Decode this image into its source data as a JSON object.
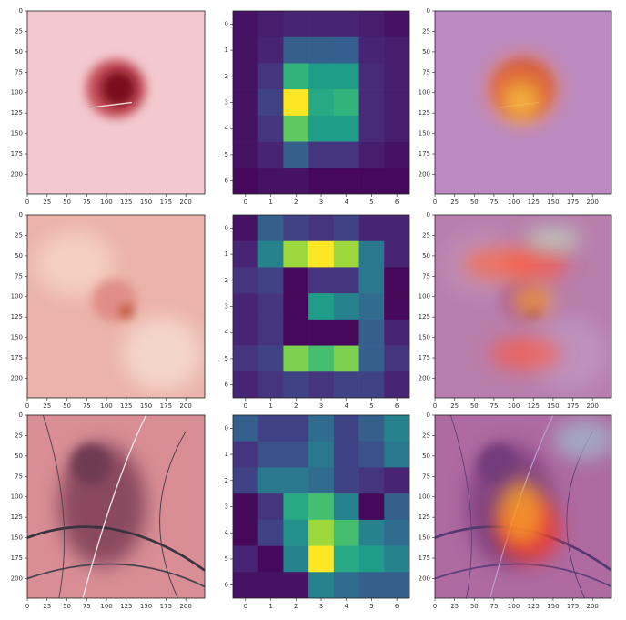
{
  "chart_data": [
    {
      "type": "image",
      "xlim": [
        0,
        224
      ],
      "ylim": [
        224,
        0
      ],
      "xticks": [
        0,
        25,
        50,
        75,
        100,
        125,
        150,
        175,
        200
      ],
      "yticks": [
        0,
        25,
        50,
        75,
        100,
        125,
        150,
        175,
        200
      ]
    },
    {
      "type": "heatmap",
      "colormap": "viridis",
      "xlim": [
        -0.5,
        6.5
      ],
      "ylim": [
        6.5,
        -0.5
      ],
      "xticks": [
        0,
        1,
        2,
        3,
        4,
        5,
        6
      ],
      "yticks": [
        0,
        1,
        2,
        3,
        4,
        5,
        6
      ],
      "values": [
        [
          0.05,
          0.08,
          0.1,
          0.1,
          0.1,
          0.08,
          0.05
        ],
        [
          0.05,
          0.1,
          0.3,
          0.3,
          0.3,
          0.1,
          0.08
        ],
        [
          0.05,
          0.15,
          0.65,
          0.55,
          0.55,
          0.12,
          0.08
        ],
        [
          0.05,
          0.2,
          1.0,
          0.6,
          0.65,
          0.12,
          0.08
        ],
        [
          0.05,
          0.15,
          0.75,
          0.55,
          0.55,
          0.12,
          0.08
        ],
        [
          0.05,
          0.1,
          0.3,
          0.15,
          0.15,
          0.08,
          0.05
        ],
        [
          0.02,
          0.05,
          0.05,
          0.02,
          0.02,
          0.02,
          0.02
        ]
      ]
    },
    {
      "type": "image",
      "xlim": [
        0,
        224
      ],
      "ylim": [
        224,
        0
      ],
      "xticks": [
        0,
        25,
        50,
        75,
        100,
        125,
        150,
        175,
        200
      ],
      "yticks": [
        0,
        25,
        50,
        75,
        100,
        125,
        150,
        175,
        200
      ]
    },
    {
      "type": "image",
      "xlim": [
        0,
        224
      ],
      "ylim": [
        224,
        0
      ],
      "xticks": [
        0,
        25,
        50,
        75,
        100,
        125,
        150,
        175,
        200
      ],
      "yticks": [
        0,
        25,
        50,
        75,
        100,
        125,
        150,
        175,
        200
      ]
    },
    {
      "type": "heatmap",
      "colormap": "viridis",
      "xlim": [
        -0.5,
        6.5
      ],
      "ylim": [
        6.5,
        -0.5
      ],
      "xticks": [
        0,
        1,
        2,
        3,
        4,
        5,
        6
      ],
      "yticks": [
        0,
        1,
        2,
        3,
        4,
        5,
        6
      ],
      "values": [
        [
          0.05,
          0.3,
          0.2,
          0.15,
          0.2,
          0.1,
          0.1
        ],
        [
          0.1,
          0.45,
          0.85,
          1.0,
          0.85,
          0.4,
          0.1
        ],
        [
          0.15,
          0.2,
          0.02,
          0.15,
          0.15,
          0.4,
          0.02
        ],
        [
          0.1,
          0.15,
          0.02,
          0.55,
          0.45,
          0.35,
          0.02
        ],
        [
          0.1,
          0.15,
          0.02,
          0.02,
          0.02,
          0.3,
          0.1
        ],
        [
          0.15,
          0.2,
          0.8,
          0.7,
          0.8,
          0.3,
          0.15
        ],
        [
          0.1,
          0.15,
          0.2,
          0.15,
          0.2,
          0.2,
          0.1
        ]
      ]
    },
    {
      "type": "image",
      "xlim": [
        0,
        224
      ],
      "ylim": [
        224,
        0
      ],
      "xticks": [
        0,
        25,
        50,
        75,
        100,
        125,
        150,
        175,
        200
      ],
      "yticks": [
        0,
        25,
        50,
        75,
        100,
        125,
        150,
        175,
        200
      ]
    },
    {
      "type": "image",
      "xlim": [
        0,
        224
      ],
      "ylim": [
        224,
        0
      ],
      "xticks": [
        0,
        25,
        50,
        75,
        100,
        125,
        150,
        175,
        200
      ],
      "yticks": [
        0,
        25,
        50,
        75,
        100,
        125,
        150,
        175,
        200
      ]
    },
    {
      "type": "heatmap",
      "colormap": "viridis",
      "xlim": [
        -0.5,
        6.5
      ],
      "ylim": [
        6.5,
        -0.5
      ],
      "xticks": [
        0,
        1,
        2,
        3,
        4,
        5,
        6
      ],
      "yticks": [
        0,
        1,
        2,
        3,
        4,
        5,
        6
      ],
      "values": [
        [
          0.3,
          0.2,
          0.2,
          0.35,
          0.2,
          0.3,
          0.45
        ],
        [
          0.15,
          0.25,
          0.25,
          0.4,
          0.2,
          0.25,
          0.4
        ],
        [
          0.2,
          0.4,
          0.4,
          0.35,
          0.2,
          0.15,
          0.1
        ],
        [
          0.02,
          0.15,
          0.6,
          0.7,
          0.45,
          0.02,
          0.3
        ],
        [
          0.02,
          0.2,
          0.5,
          0.85,
          0.7,
          0.45,
          0.35
        ],
        [
          0.1,
          0.02,
          0.45,
          1.0,
          0.6,
          0.55,
          0.45
        ],
        [
          0.05,
          0.05,
          0.05,
          0.45,
          0.35,
          0.3,
          0.3
        ]
      ]
    },
    {
      "type": "image",
      "xlim": [
        0,
        224
      ],
      "ylim": [
        224,
        0
      ],
      "xticks": [
        0,
        25,
        50,
        75,
        100,
        125,
        150,
        175,
        200
      ],
      "yticks": [
        0,
        25,
        50,
        75,
        100,
        125,
        150,
        175,
        200
      ]
    }
  ]
}
